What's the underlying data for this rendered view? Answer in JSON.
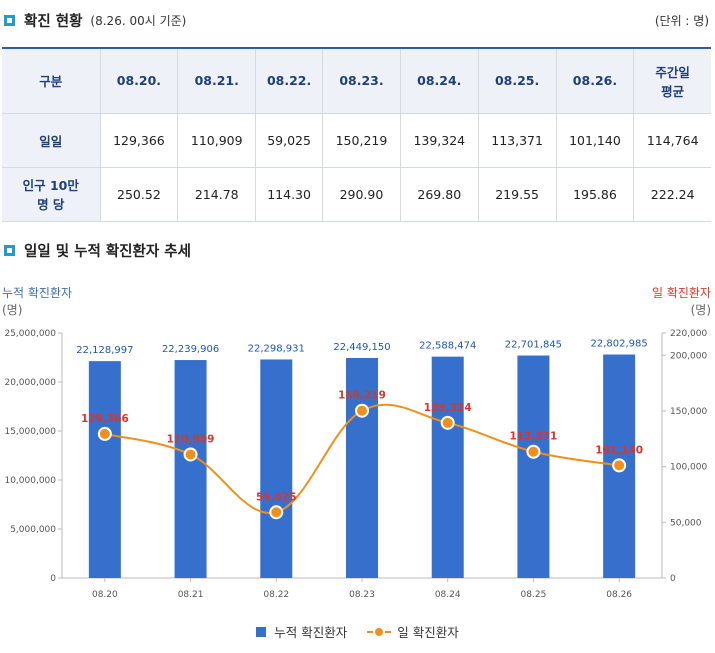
{
  "section1": {
    "title": "확진 현황",
    "subtitle": "(8.26. 00시 기준)",
    "unit": "(단위 : 명)"
  },
  "table": {
    "headers": [
      "구분",
      "08.20.",
      "08.21.",
      "08.22.",
      "08.23.",
      "08.24.",
      "08.25.",
      "08.26.",
      "주간일\n평균"
    ],
    "rows": [
      {
        "label": "일일",
        "cells": [
          "129,366",
          "110,909",
          "59,025",
          "150,219",
          "139,324",
          "113,371",
          "101,140",
          "114,764"
        ]
      },
      {
        "label": "인구 10만\n명 당",
        "cells": [
          "250.52",
          "214.78",
          "114.30",
          "290.90",
          "269.80",
          "219.55",
          "195.86",
          "222.24"
        ]
      }
    ]
  },
  "section2": {
    "title": "일일 및 누적 확진환자 추세"
  },
  "chart_data": {
    "type": "bar",
    "categories": [
      "08.20",
      "08.21",
      "08.22",
      "08.23",
      "08.24",
      "08.25",
      "08.26"
    ],
    "series": [
      {
        "name": "누적 확진환자",
        "type": "bar",
        "axis": "left",
        "color": "#3670cc",
        "values": [
          22128997,
          22239906,
          22298931,
          22449150,
          22588474,
          22701845,
          22802985
        ],
        "labels": [
          "22,128,997",
          "22,239,906",
          "22,298,931",
          "22,449,150",
          "22,588,474",
          "22,701,845",
          "22,802,985"
        ]
      },
      {
        "name": "일 확진환자",
        "type": "line",
        "axis": "right",
        "color": "#f0901c",
        "values": [
          129366,
          110909,
          59025,
          150219,
          139324,
          113371,
          101140
        ],
        "labels": [
          "129,366",
          "110,909",
          "59,025",
          "150,219",
          "139,324",
          "113,371",
          "101,140"
        ]
      }
    ],
    "ylabel_left": "누적 확진환자",
    "ylabel_left_unit": "(명)",
    "ylabel_right": "일 확진환자",
    "ylabel_right_unit": "(명)",
    "ylim_left": [
      0,
      25000000
    ],
    "yticks_left": [
      "25,000,000",
      "20,000,000",
      "15,000,000",
      "10,000,000",
      "5,000,000",
      "0"
    ],
    "ylim_right": [
      0,
      220000
    ],
    "yticks_right": [
      {
        "value": 220000,
        "label": "220,000"
      },
      {
        "value": 200000,
        "label": "200,000"
      },
      {
        "value": 150000,
        "label": "150,000"
      },
      {
        "value": 100000,
        "label": "100,000"
      },
      {
        "value": 50000,
        "label": "50,000"
      },
      {
        "value": 0,
        "label": "0"
      }
    ],
    "grid": false,
    "legend": "bottom-center",
    "bar_label_color": "#1f56b0",
    "line_label_color": "#d9362b"
  }
}
